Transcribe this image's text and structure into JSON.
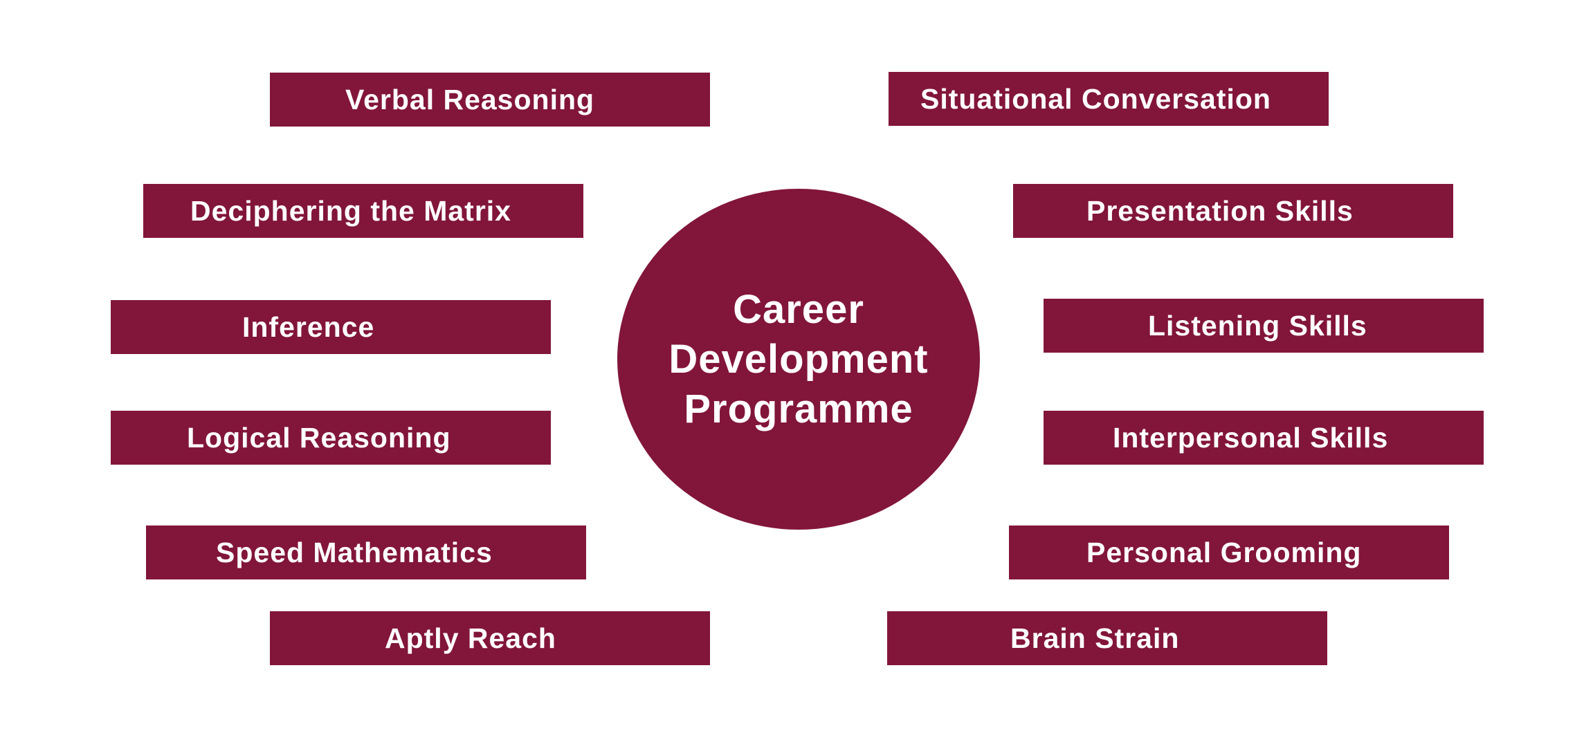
{
  "center": {
    "line1": "Career",
    "line2": "Development",
    "line3": "Programme"
  },
  "left_items": [
    "Verbal Reasoning",
    "Deciphering the Matrix",
    "Inference",
    "Logical Reasoning",
    "Speed Mathematics",
    "Aptly Reach"
  ],
  "right_items": [
    "Situational Conversation",
    "Presentation Skills",
    "Listening Skills",
    "Interpersonal Skills",
    "Personal Grooming",
    "Brain Strain"
  ],
  "colors": {
    "accent": "#82153a",
    "text": "#ffffff",
    "background": "#ffffff"
  }
}
